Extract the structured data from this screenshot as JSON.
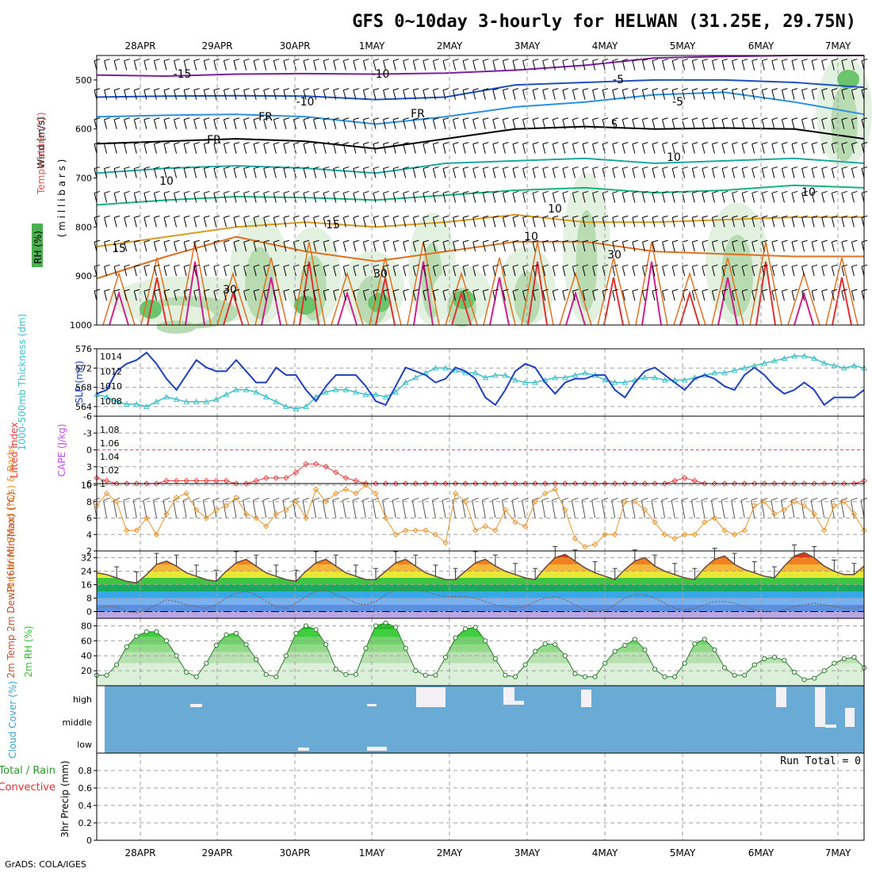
{
  "header": {
    "title": "GFS 0~10day 3-hourly for HELWAN (31.25E, 29.75N)",
    "credit": "GrADS: COLA/IGES"
  },
  "dates": [
    "28APR",
    "29APR",
    "30APR",
    "1MAY",
    "2MAY",
    "3MAY",
    "4MAY",
    "5MAY",
    "6MAY",
    "7MAY"
  ],
  "colors": {
    "frame": "#000000",
    "grid": "#a0a0a0",
    "cloud_bg": "#6aabd6",
    "slp": "#1f3fbf",
    "thickness": "#3fbfc8",
    "lifted": "#e04040",
    "wind": "#e69530",
    "temp": "#6b4a3a",
    "dewpt": "#806060",
    "rh": "#2fbf2f"
  },
  "panels": {
    "upper": {
      "label_rh": "RH (%)",
      "label_temp": "Temperature (°C)",
      "label_wind": "Wind (m/s)",
      "label_mb": "( m i l l i b a r s )",
      "yticks": [
        "500",
        "600",
        "700",
        "800",
        "900",
        "1000"
      ],
      "contour_labels": [
        "-15",
        "-10",
        "-10",
        "-5",
        "-5",
        "FR",
        "FR",
        "FR",
        "5",
        "10",
        "10",
        "15",
        "15",
        "10",
        "10",
        "10",
        "30",
        "30",
        "30"
      ]
    },
    "slp": {
      "label_left": "1000-500mb Thickness (dm)",
      "label_right": "SLP (mb)",
      "left_ticks": [
        "564",
        "568",
        "572",
        "576"
      ],
      "right_ticks": [
        "1008",
        "1010",
        "1012",
        "1014"
      ]
    },
    "cape": {
      "label_left": "Lifted Index",
      "label_right": "CAPE (J/kg)",
      "left_ticks": [
        "-6",
        "-3",
        "0",
        "3",
        "6"
      ],
      "right_ticks": [
        "1",
        "1.02",
        "1.04",
        "1.06",
        "1.08"
      ]
    },
    "wind": {
      "label": "10m Wind Speed (m/s) & Barbs",
      "yticks": [
        "2",
        "4",
        "6",
        "8",
        "10"
      ]
    },
    "temp": {
      "label": "2m Temp 2m DewPt (6hr Min/Max) (°C)",
      "yticks": [
        "0",
        "8",
        "16",
        "24",
        "32"
      ]
    },
    "rh": {
      "label": "2m RH (%)",
      "yticks": [
        "20",
        "40",
        "60",
        "80"
      ]
    },
    "cloud": {
      "label": "Cloud Cover (%)",
      "levels": [
        "high",
        "middle",
        "low"
      ]
    },
    "precip": {
      "label_total": "Total / Rain",
      "label_conv": "Convective",
      "label_axis": "3hr Precip (mm)",
      "run_total": "Run Total = 0",
      "yticks": [
        "0",
        "0.2",
        "0.4",
        "0.6",
        "0.8"
      ]
    }
  },
  "chart_data": [
    {
      "type": "line",
      "title": "SLP / 1000-500mb Thickness",
      "series": [
        {
          "name": "SLP (mb)",
          "values": [
            1009,
            1009.5,
            1012,
            1013,
            1013.5,
            1014.5,
            1013,
            1011,
            1009.5,
            1011.5,
            1013.5,
            1012.5,
            1012,
            1012,
            1013.5,
            1012,
            1010.5,
            1010.5,
            1012.5,
            1011.5,
            1011.5,
            1009.5,
            1008,
            1010,
            1011.5,
            1011.5,
            1011.5,
            1010,
            1008,
            1007.5,
            1010,
            1012.5,
            1012,
            1011.5,
            1010.5,
            1011,
            1012.5,
            1012,
            1011,
            1008.5,
            1007.5,
            1009.5,
            1012,
            1013,
            1012.5,
            1010.5,
            1009,
            1010.5,
            1011,
            1011,
            1011.5,
            1011.5,
            1009.5,
            1008.5,
            1010.5,
            1012,
            1012.5,
            1011.5,
            1010.5,
            1009.5,
            1011,
            1011.5,
            1011,
            1010,
            1009.5,
            1011.5,
            1012.5,
            1011.5,
            1010,
            1009,
            1009.5,
            1010.5,
            1009.5,
            1007.5,
            1008.5,
            1008.5,
            1008.5,
            1009.5
          ]
        },
        {
          "name": "Thickness (dm)",
          "values": [
            566.5,
            566,
            565,
            564.5,
            564.5,
            564,
            565,
            566,
            565.5,
            565,
            565,
            565,
            565.5,
            566.5,
            567.5,
            567.5,
            567,
            566,
            565,
            564,
            563.5,
            564,
            566,
            567,
            567.5,
            567.5,
            567,
            566.5,
            566.5,
            566,
            567,
            569,
            570,
            571,
            572,
            572,
            571.5,
            571,
            571,
            570,
            570.5,
            570.5,
            569.5,
            569,
            569,
            569.5,
            570,
            570,
            570.5,
            571,
            570.5,
            569.5,
            569,
            569,
            569.5,
            570,
            570,
            569.5,
            569.5,
            569.5,
            570,
            570.5,
            571,
            571,
            571.5,
            572,
            572.5,
            573,
            573.5,
            574,
            574.5,
            574.5,
            574,
            573,
            572.5,
            572,
            572.5,
            572
          ]
        }
      ],
      "ylim_left": [
        562,
        576
      ],
      "ylim_right": [
        1006,
        1015
      ]
    },
    {
      "type": "line",
      "title": "Lifted Index / CAPE",
      "series": [
        {
          "name": "Lifted Index",
          "values": [
            5,
            5.5,
            6,
            6,
            6,
            6,
            6,
            5.5,
            5.5,
            5.5,
            5.5,
            5.5,
            5.5,
            5.5,
            6,
            6,
            5.5,
            5,
            5,
            5,
            4,
            2.5,
            2.5,
            3,
            4,
            5,
            5.5,
            6,
            6,
            6,
            6,
            6,
            6,
            6,
            6,
            6,
            6,
            6,
            6,
            6,
            6,
            6,
            6,
            6,
            6,
            6,
            6,
            6,
            6,
            6,
            6,
            6,
            6,
            6,
            6,
            6,
            6,
            6,
            5.5,
            5,
            5.5,
            6,
            6,
            6,
            6,
            6,
            6,
            6,
            6,
            6,
            6,
            6,
            6,
            6,
            6,
            6,
            6,
            5.5
          ]
        }
      ]
    },
    {
      "type": "line",
      "title": "10m Wind Speed",
      "series": [
        {
          "name": "10m Wind Speed (m/s)",
          "values": [
            7.5,
            9,
            8,
            4.5,
            4.5,
            6,
            4,
            6.5,
            8.5,
            9,
            7,
            6,
            7,
            7.5,
            8.5,
            6.5,
            6,
            5,
            6.5,
            7,
            8,
            6,
            9.5,
            8,
            9,
            9.5,
            9,
            10,
            9,
            6,
            4,
            4.5,
            4.5,
            4.5,
            4,
            3,
            9,
            8,
            4.5,
            5,
            4.5,
            7,
            5.5,
            5,
            8,
            9,
            9.5,
            7,
            3.5,
            2.5,
            2.8,
            4,
            4,
            8,
            8,
            7,
            5.5,
            4,
            3.5,
            4,
            4,
            5.5,
            6,
            4.5,
            4,
            4.5,
            7.5,
            8,
            6.5,
            7,
            8,
            7.5,
            6.5,
            4.5,
            7.5,
            8,
            6.5,
            4.5
          ]
        }
      ],
      "ylim": [
        2,
        10
      ]
    },
    {
      "type": "area",
      "title": "2m Temp / DewPt",
      "series": [
        {
          "name": "2m Temp",
          "values": [
            23,
            22,
            20,
            18,
            17,
            22,
            28,
            30,
            27,
            23,
            21,
            19,
            18,
            24,
            29,
            31,
            27,
            23,
            21,
            19,
            18,
            24,
            29,
            31,
            27,
            23,
            21,
            19,
            19,
            24,
            29,
            31,
            27,
            23,
            21,
            19,
            19,
            24,
            29,
            31,
            27,
            24,
            22,
            20,
            19,
            26,
            32,
            34,
            30,
            26,
            23,
            21,
            19,
            25,
            30,
            32,
            27,
            24,
            22,
            20,
            19,
            26,
            31,
            33,
            28,
            25,
            23,
            21,
            20,
            27,
            33,
            35,
            32,
            27,
            24,
            22,
            22,
            27
          ]
        },
        {
          "name": "2m DewPt",
          "values": [
            2,
            3,
            3,
            0,
            -1,
            1,
            4,
            7,
            6,
            4,
            3,
            2,
            4,
            8,
            11,
            12,
            10,
            6,
            3,
            2,
            5,
            9,
            12,
            13,
            10,
            8,
            5,
            4,
            6,
            10,
            13,
            14,
            14,
            12,
            10,
            9,
            9,
            9,
            8,
            6,
            4,
            3,
            2,
            3,
            6,
            8,
            9,
            7,
            4,
            1,
            0,
            1,
            4,
            8,
            10,
            10,
            8,
            5,
            2,
            1,
            2,
            4,
            6,
            6,
            5,
            3,
            1,
            0,
            0,
            1,
            3,
            4,
            5,
            4,
            3,
            2,
            2,
            3
          ]
        }
      ],
      "ylim": [
        -4,
        36
      ]
    },
    {
      "type": "area",
      "title": "2m RH",
      "series": [
        {
          "name": "2m RH (%)",
          "values": [
            14,
            14,
            28,
            52,
            66,
            72,
            72,
            60,
            40,
            18,
            12,
            30,
            54,
            68,
            70,
            55,
            35,
            15,
            12,
            40,
            70,
            80,
            75,
            55,
            22,
            15,
            15,
            50,
            80,
            84,
            78,
            50,
            20,
            14,
            14,
            38,
            64,
            76,
            78,
            60,
            36,
            14,
            12,
            28,
            46,
            56,
            55,
            40,
            16,
            12,
            12,
            30,
            46,
            54,
            62,
            48,
            22,
            12,
            12,
            30,
            56,
            62,
            48,
            24,
            14,
            14,
            28,
            36,
            38,
            34,
            18,
            8,
            10,
            20,
            30,
            36,
            38,
            24
          ]
        }
      ],
      "ylim": [
        0,
        90
      ]
    },
    {
      "type": "bar",
      "title": "3hr Precip",
      "series": [
        {
          "name": "3hr Precip (mm)",
          "values": []
        }
      ],
      "ylim": [
        0,
        1
      ]
    }
  ]
}
